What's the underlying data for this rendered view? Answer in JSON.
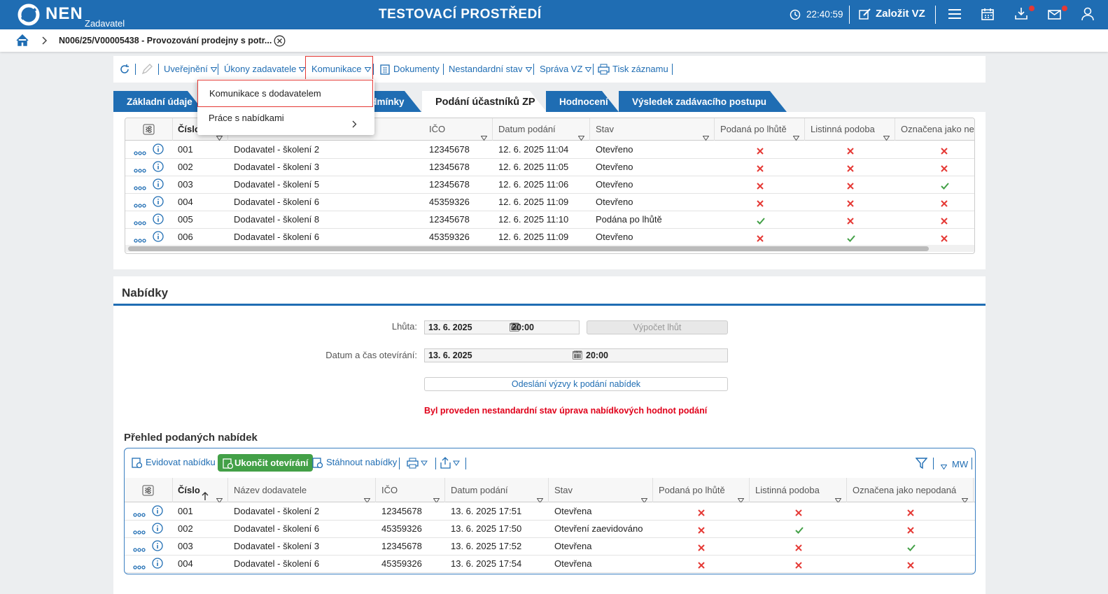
{
  "header": {
    "logo": "NEN",
    "role": "Zadavatel",
    "environment": "TESTOVACÍ PROSTŘEDÍ",
    "time": "22:40:59",
    "create_button": "Založit VZ"
  },
  "breadcrumb": {
    "title": "N006/25/V00005438 - Provozování prodejny s potr..."
  },
  "toolbar": {
    "items": [
      "Uveřejnění",
      "Úkony zadavatele",
      "Komunikace",
      "Dokumenty",
      "Nestandardní stav",
      "Správa VZ",
      "Tisk záznamu"
    ]
  },
  "dropdown": {
    "items": [
      "Komunikace s dodavatelem",
      "Práce s nabídkami"
    ]
  },
  "tabs": [
    "Základní údaje",
    "odmínky",
    "Podání účastníků ZP",
    "Hodnocení",
    "Výsledek zadávacího postupu"
  ],
  "participants_table": {
    "columns": [
      "Číslo",
      "IČO",
      "Datum podání",
      "Stav",
      "Podaná po lhůtě",
      "Listinná podoba",
      "Označena jako nep"
    ],
    "rows": [
      {
        "number": "001",
        "name": "Dodavatel - školení 2",
        "ico": "12345678",
        "date": "12. 6. 2025 11:04",
        "state": "Otevřeno",
        "late": false,
        "paper": false,
        "unsubmitted": false
      },
      {
        "number": "002",
        "name": "Dodavatel - školení 3",
        "ico": "12345678",
        "date": "12. 6. 2025 11:05",
        "state": "Otevřeno",
        "late": false,
        "paper": false,
        "unsubmitted": false
      },
      {
        "number": "003",
        "name": "Dodavatel - školení 5",
        "ico": "12345678",
        "date": "12. 6. 2025 11:06",
        "state": "Otevřeno",
        "late": false,
        "paper": false,
        "unsubmitted": true
      },
      {
        "number": "004",
        "name": "Dodavatel - školení 6",
        "ico": "45359326",
        "date": "12. 6. 2025 11:09",
        "state": "Otevřeno",
        "late": false,
        "paper": false,
        "unsubmitted": false
      },
      {
        "number": "005",
        "name": "Dodavatel - školení 8",
        "ico": "12345678",
        "date": "12. 6. 2025 11:10",
        "state": "Podána po lhůtě",
        "late": true,
        "paper": false,
        "unsubmitted": false
      },
      {
        "number": "006",
        "name": "Dodavatel - školení 6",
        "ico": "45359326",
        "date": "12. 6. 2025 11:09",
        "state": "Otevřeno",
        "late": false,
        "paper": true,
        "unsubmitted": false
      }
    ]
  },
  "offers": {
    "title": "Nabídky",
    "deadline_label": "Lhůta:",
    "deadline_date": "13. 6. 2025",
    "deadline_time": "20:00",
    "calc_button": "Výpočet lhůt",
    "opening_label": "Datum a čas otevírání:",
    "opening_date": "13. 6. 2025",
    "opening_time": "20:00",
    "send_button": "Odeslání výzvy k podání nabídek",
    "warning": "Byl proveden nestandardní stav úprava nabídkových hodnot podání"
  },
  "overview": {
    "title": "Přehled podaných nabídek",
    "toolbar": [
      "Evidovat nabídku",
      "Ukončit otevírání",
      "Stáhnout nabídky"
    ],
    "mw": "MW",
    "table": {
      "columns": [
        "Číslo",
        "Název dodavatele",
        "IČO",
        "Datum podání",
        "Stav",
        "Podaná po lhůtě",
        "Listinná podoba",
        "Označena jako nepodaná"
      ],
      "rows": [
        {
          "number": "001",
          "name": "Dodavatel - školení 2",
          "ico": "12345678",
          "date": "13. 6. 2025 17:51",
          "state": "Otevřena",
          "late": false,
          "paper": false,
          "unsubmitted": false
        },
        {
          "number": "002",
          "name": "Dodavatel - školení 6",
          "ico": "45359326",
          "date": "13. 6. 2025 17:50",
          "state": "Otevření zaevidováno",
          "late": false,
          "paper": true,
          "unsubmitted": false
        },
        {
          "number": "003",
          "name": "Dodavatel - školení 3",
          "ico": "12345678",
          "date": "13. 6. 2025 17:52",
          "state": "Otevřena",
          "late": false,
          "paper": false,
          "unsubmitted": true
        },
        {
          "number": "004",
          "name": "Dodavatel - školení 6",
          "ico": "45359326",
          "date": "13. 6. 2025 17:54",
          "state": "Otevřena",
          "late": false,
          "paper": false,
          "unsubmitted": false
        }
      ]
    }
  }
}
